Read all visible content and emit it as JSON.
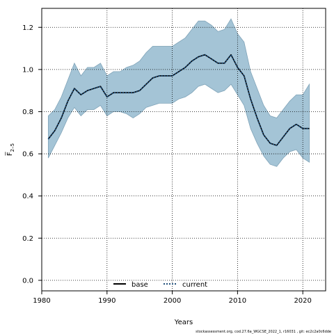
{
  "chart_data": {
    "type": "line",
    "xlabel": "Years",
    "ylabel": "F̅",
    "ylabel_subscript": "2–5",
    "xlim": [
      1980,
      2023.5
    ],
    "ylim": [
      -0.05,
      1.29
    ],
    "x_ticks": [
      1980,
      1990,
      2000,
      2010,
      2020
    ],
    "y_ticks": [
      0.0,
      0.2,
      0.4,
      0.6,
      0.8,
      1.0,
      1.2
    ],
    "y_tick_labels": [
      "0.0",
      "0.2",
      "0.4",
      "0.6",
      "0.8",
      "1.0",
      "1.2"
    ],
    "grid": true,
    "legend_position": "bottom-center",
    "x": [
      1981,
      1982,
      1983,
      1984,
      1985,
      1986,
      1987,
      1988,
      1989,
      1990,
      1991,
      1992,
      1993,
      1994,
      1995,
      1996,
      1997,
      1998,
      1999,
      2000,
      2001,
      2002,
      2003,
      2004,
      2005,
      2006,
      2007,
      2008,
      2009,
      2010,
      2011,
      2012,
      2013,
      2014,
      2015,
      2016,
      2017,
      2018,
      2019,
      2020,
      2021
    ],
    "series": [
      {
        "name": "base",
        "style": "solid",
        "color": "#000000",
        "values": [
          0.67,
          0.71,
          0.77,
          0.85,
          0.91,
          0.88,
          0.9,
          0.91,
          0.92,
          0.87,
          0.89,
          0.89,
          0.89,
          0.89,
          0.9,
          0.93,
          0.96,
          0.97,
          0.97,
          0.97,
          0.99,
          1.01,
          1.04,
          1.06,
          1.07,
          1.05,
          1.03,
          1.03,
          1.07,
          1.01,
          0.97,
          0.86,
          0.77,
          0.69,
          0.65,
          0.64,
          0.68,
          0.72,
          0.74,
          0.72,
          0.72
        ]
      },
      {
        "name": "current",
        "style": "dotted",
        "color": "#1f4e79",
        "values": [
          0.67,
          0.71,
          0.77,
          0.85,
          0.91,
          0.88,
          0.9,
          0.91,
          0.92,
          0.87,
          0.89,
          0.89,
          0.89,
          0.89,
          0.9,
          0.93,
          0.96,
          0.97,
          0.97,
          0.97,
          0.99,
          1.01,
          1.04,
          1.06,
          1.07,
          1.05,
          1.03,
          1.03,
          1.07,
          1.01,
          0.97,
          0.86,
          0.77,
          0.69,
          0.65,
          0.64,
          0.68,
          0.72,
          0.74,
          0.72,
          0.72
        ]
      }
    ],
    "band": {
      "color": "#a4c4d6",
      "edge_color": "#7fa3b8",
      "lower": [
        0.58,
        0.64,
        0.7,
        0.77,
        0.82,
        0.78,
        0.81,
        0.81,
        0.83,
        0.78,
        0.8,
        0.8,
        0.79,
        0.77,
        0.79,
        0.82,
        0.83,
        0.84,
        0.84,
        0.84,
        0.86,
        0.87,
        0.89,
        0.92,
        0.93,
        0.91,
        0.89,
        0.9,
        0.93,
        0.88,
        0.83,
        0.72,
        0.65,
        0.59,
        0.55,
        0.54,
        0.58,
        0.61,
        0.62,
        0.58,
        0.56
      ],
      "upper": [
        0.78,
        0.81,
        0.87,
        0.95,
        1.03,
        0.97,
        1.01,
        1.01,
        1.03,
        0.97,
        0.99,
        0.99,
        1.01,
        1.02,
        1.04,
        1.08,
        1.11,
        1.11,
        1.11,
        1.11,
        1.13,
        1.15,
        1.19,
        1.23,
        1.23,
        1.21,
        1.18,
        1.19,
        1.24,
        1.17,
        1.13,
        0.99,
        0.91,
        0.83,
        0.78,
        0.77,
        0.81,
        0.85,
        0.88,
        0.88,
        0.93
      ]
    }
  },
  "footnote": "stockassessment.org, cod.27.6a_WGCSE_2022_1, r16031 , git: ec2c2a0c6dde"
}
